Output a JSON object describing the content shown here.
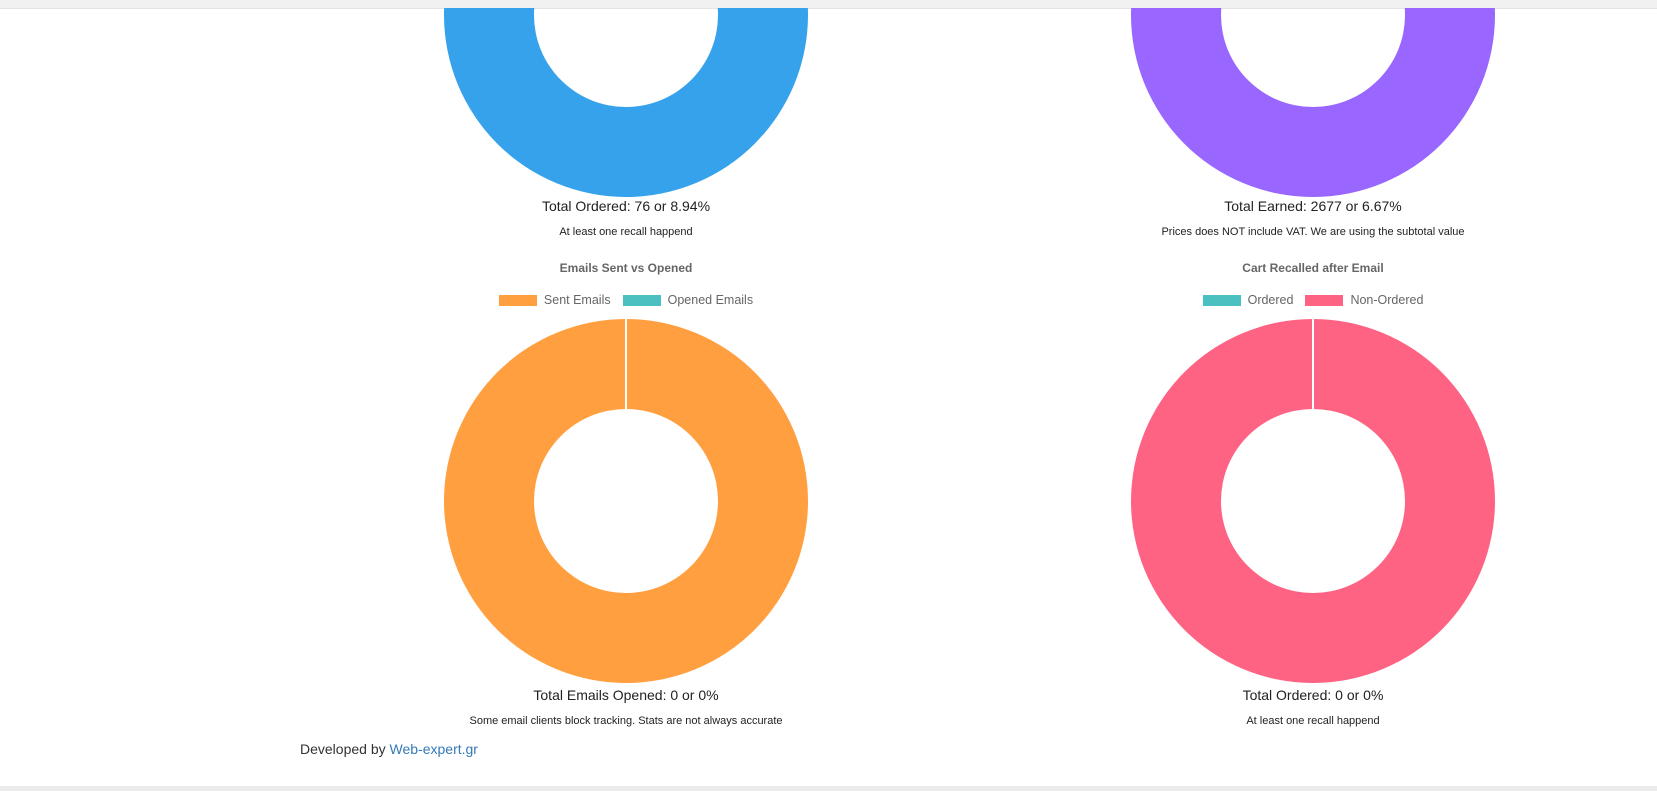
{
  "top_panels": [
    {
      "color": "#36a2eb",
      "total_text": "Total Ordered: 76 or 8.94%",
      "note": "At least one recall happend"
    },
    {
      "color": "#9966ff",
      "total_text": "Total Earned: 2677 or 6.67%",
      "note": "Prices does NOT include VAT. We are using the subtotal value"
    }
  ],
  "chart_data": [
    {
      "type": "pie",
      "title": "Emails Sent vs Opened",
      "categories": [
        "Sent Emails",
        "Opened Emails"
      ],
      "values": [
        1,
        0
      ],
      "colors": [
        "#ff9f40",
        "#4bc0c0"
      ],
      "legend": "top",
      "total_text": "Total Emails Opened: 0 or 0%",
      "note": "Some email clients block tracking. Stats are not always accurate"
    },
    {
      "type": "pie",
      "title": "Cart Recalled after Email",
      "categories": [
        "Ordered",
        "Non-Ordered"
      ],
      "values": [
        0,
        1
      ],
      "colors": [
        "#4bc0c0",
        "#ff6384"
      ],
      "legend": "top",
      "total_text": "Total Ordered: 0 or 0%",
      "note": "At least one recall happend"
    }
  ],
  "footer": {
    "prefix": "Developed by",
    "link_text": "Web-expert.gr"
  }
}
